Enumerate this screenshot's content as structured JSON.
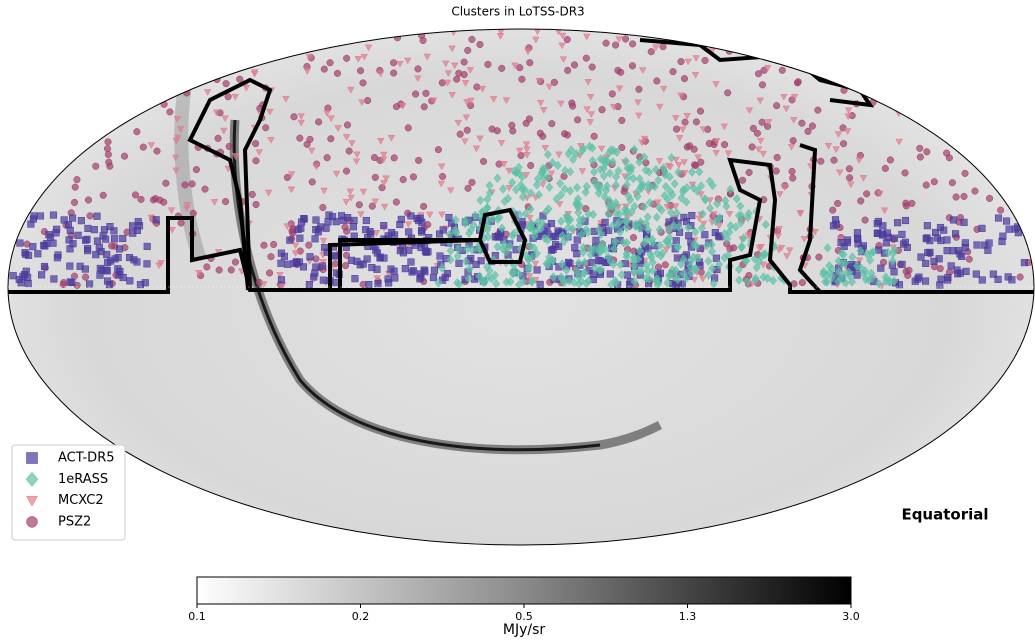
{
  "title": "Clusters in LoTSS-DR3",
  "legend": [
    {
      "name": "ACT-DR5",
      "color": "#4a3a9c",
      "marker": "square"
    },
    {
      "name": "1eRASS",
      "color": "#5cc0a6",
      "marker": "diamond"
    },
    {
      "name": "MCXC2",
      "color": "#e07b8c",
      "marker": "triangle-down"
    },
    {
      "name": "PSZ2",
      "color": "#a33f6c",
      "marker": "circle"
    }
  ],
  "frame_label": "Equatorial",
  "colorbar": {
    "label": "MJy/sr",
    "ticks": [
      0.1,
      0.2,
      0.5,
      1.3,
      {
        "value": 3,
        "label": "3.0"
      }
    ]
  }
}
